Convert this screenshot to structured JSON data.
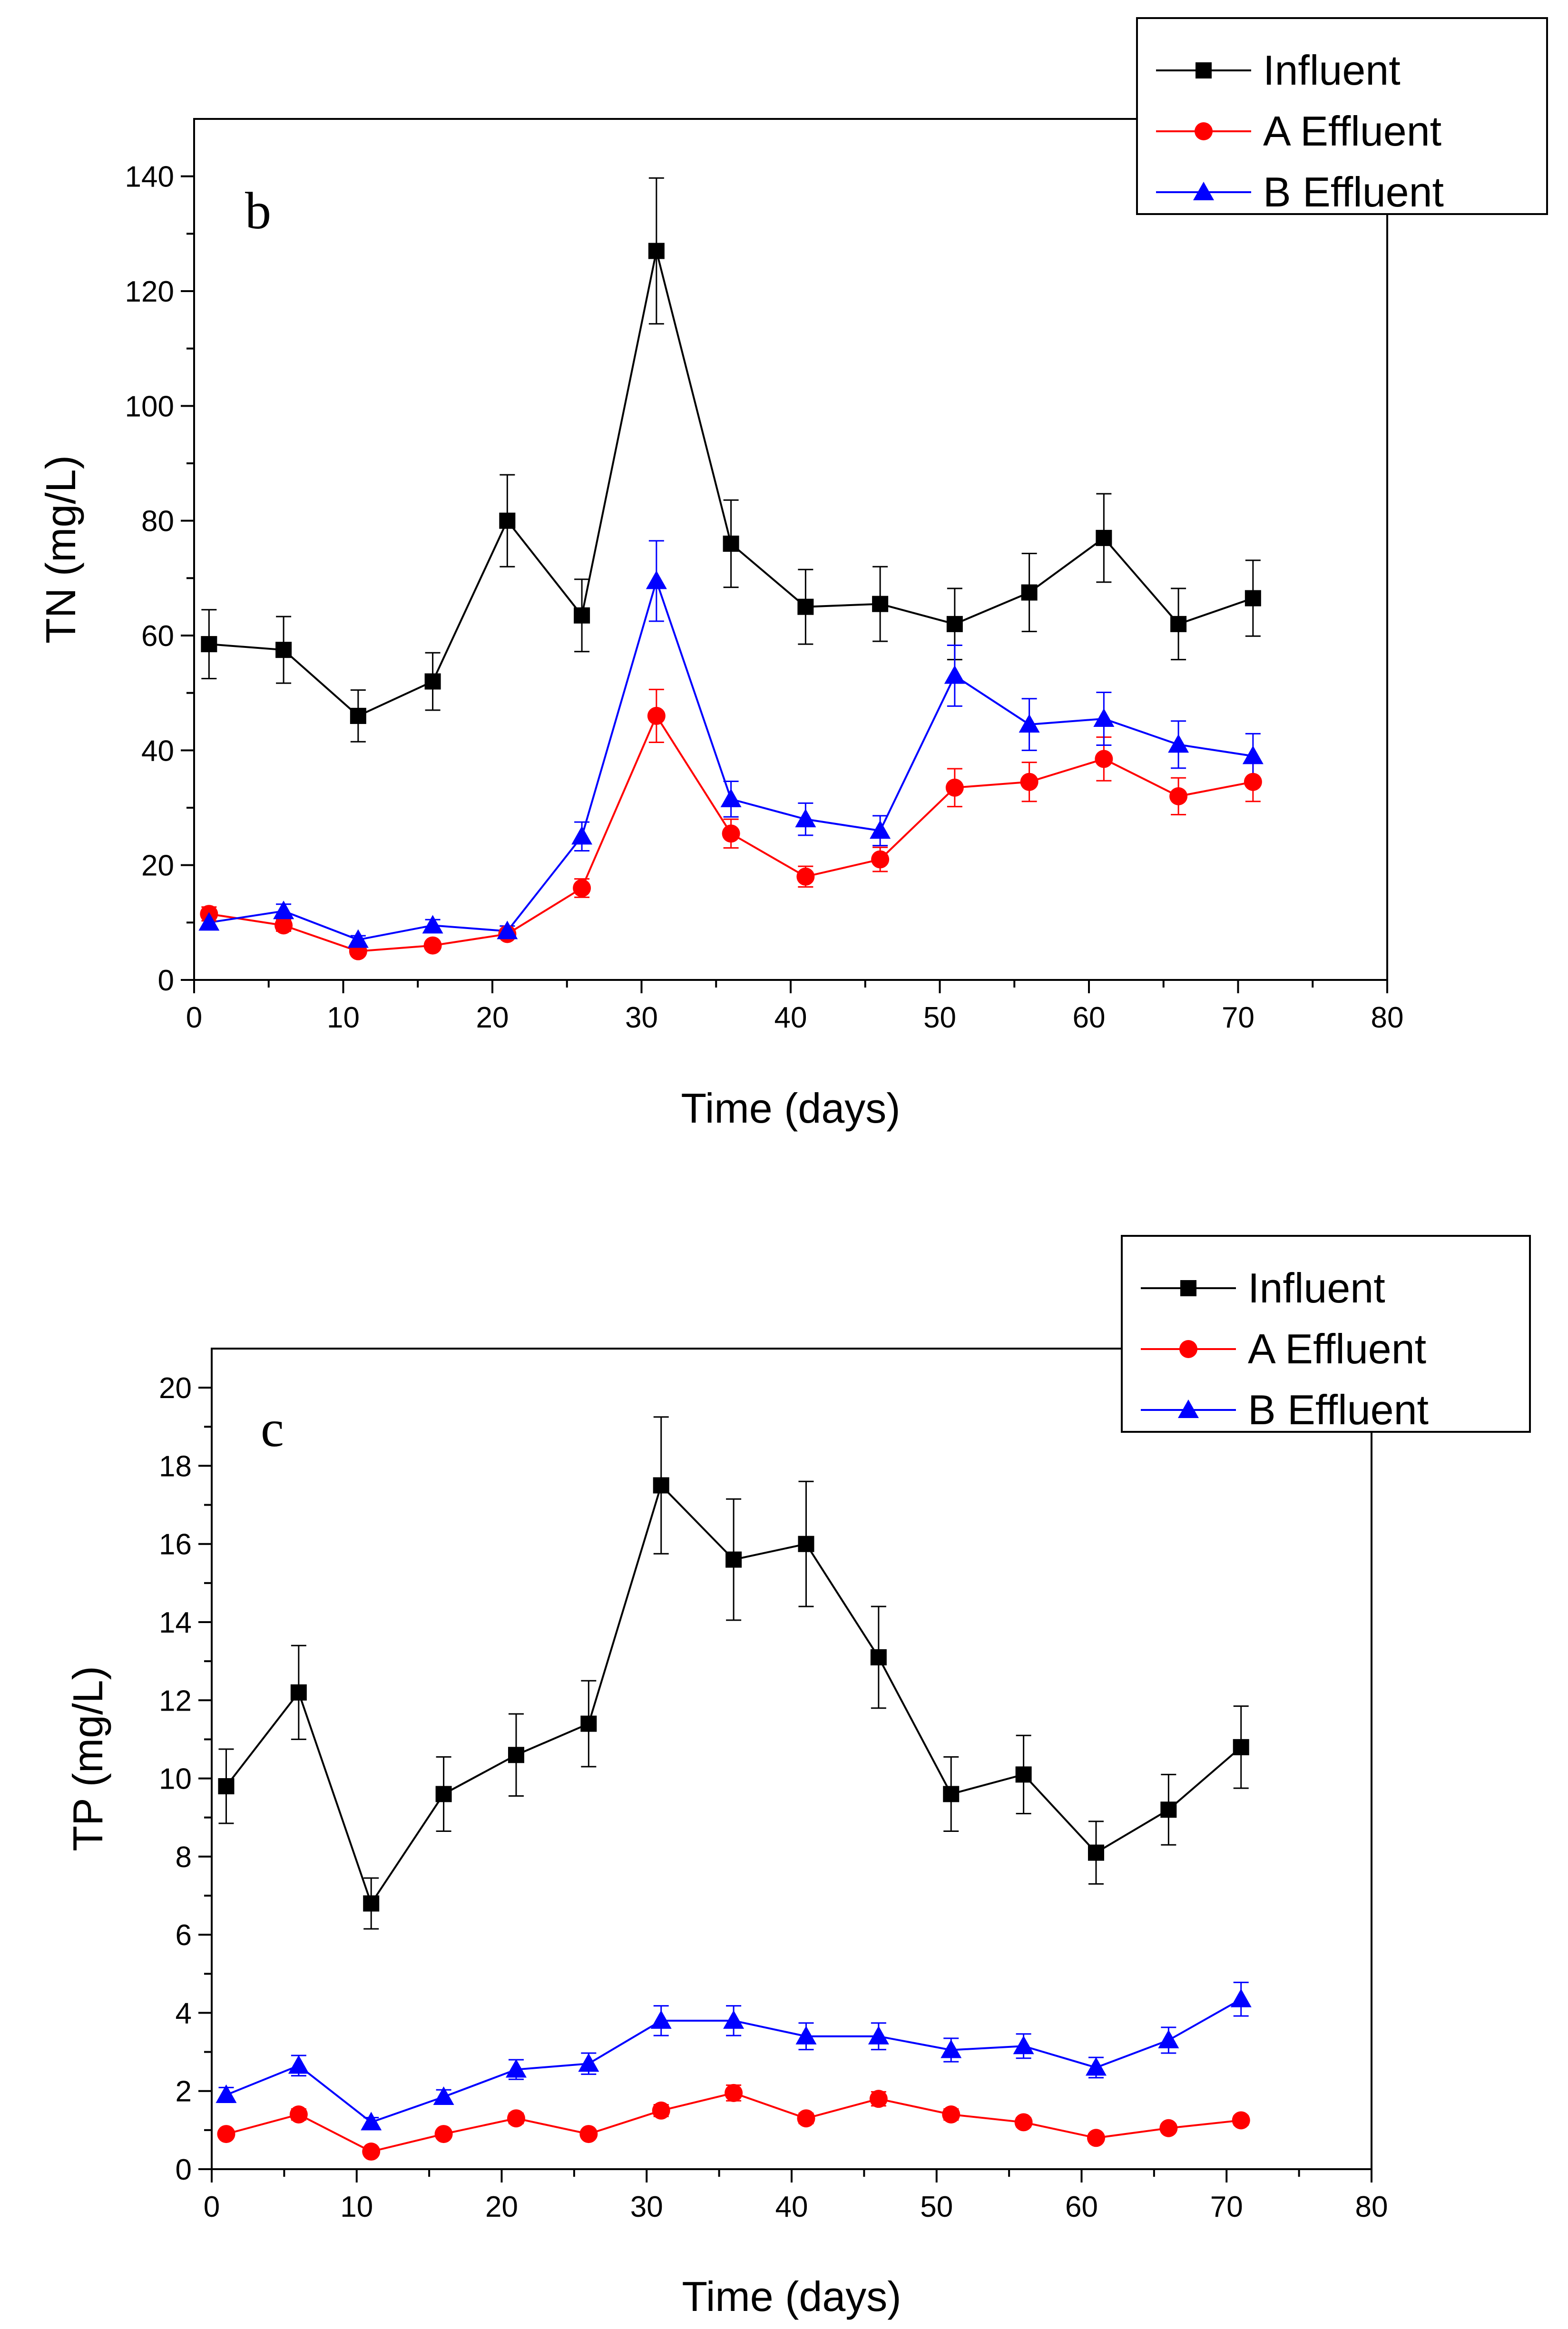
{
  "chart_data": [
    {
      "type": "line",
      "panel_label": "b",
      "xlabel": "Time (days)",
      "ylabel": "TN (mg/L)",
      "xlim": [
        0,
        80
      ],
      "ylim": [
        0,
        150
      ],
      "xticks": [
        0,
        10,
        20,
        30,
        40,
        50,
        60,
        70,
        80
      ],
      "yticks": [
        0,
        20,
        40,
        60,
        80,
        100,
        120,
        140
      ],
      "grid": false,
      "legend_position": "top-right",
      "x": [
        1,
        6,
        11,
        16,
        21,
        26,
        31,
        36,
        41,
        46,
        51,
        56,
        61,
        66,
        71
      ],
      "series": [
        {
          "name": "Influent",
          "color": "#000000",
          "marker": "square",
          "values": [
            58.5,
            57.5,
            46,
            52,
            80,
            63.5,
            127,
            76,
            65,
            65.5,
            62,
            67.5,
            77,
            62,
            66.5
          ],
          "errors": [
            6,
            5.8,
            4.5,
            5,
            8,
            6.3,
            12.7,
            7.6,
            6.5,
            6.5,
            6.2,
            6.8,
            7.7,
            6.2,
            6.6
          ]
        },
        {
          "name": "A Effluent",
          "color": "#ff0000",
          "marker": "circle",
          "values": [
            11.5,
            9.5,
            5,
            6,
            8,
            16,
            46,
            25.5,
            18,
            21,
            33.5,
            34.5,
            38.5,
            32,
            34.5
          ],
          "errors": [
            1.2,
            1,
            0.6,
            0.6,
            0.8,
            1.6,
            4.6,
            2.5,
            1.8,
            2.1,
            3.3,
            3.4,
            3.8,
            3.2,
            3.4
          ]
        },
        {
          "name": "B Effluent",
          "color": "#0000ff",
          "marker": "triangle",
          "values": [
            10,
            12,
            7,
            9.5,
            8.5,
            25,
            69.5,
            31.5,
            28,
            26,
            53,
            44.5,
            45.5,
            41,
            39
          ],
          "errors": [
            1,
            1.2,
            0.7,
            1,
            0.9,
            2.5,
            7,
            3.1,
            2.8,
            2.6,
            5.3,
            4.5,
            4.6,
            4.1,
            3.9
          ]
        }
      ]
    },
    {
      "type": "line",
      "panel_label": "c",
      "xlabel": "Time (days)",
      "ylabel": "TP (mg/L)",
      "xlim": [
        0,
        80
      ],
      "ylim": [
        0,
        21
      ],
      "xticks": [
        0,
        10,
        20,
        30,
        40,
        50,
        60,
        70,
        80
      ],
      "yticks": [
        0,
        2,
        4,
        6,
        8,
        10,
        12,
        14,
        16,
        18,
        20
      ],
      "grid": false,
      "legend_position": "top-right",
      "x": [
        1,
        6,
        11,
        16,
        21,
        26,
        31,
        36,
        41,
        46,
        51,
        56,
        61,
        66,
        71
      ],
      "series": [
        {
          "name": "Influent",
          "color": "#000000",
          "marker": "square",
          "values": [
            9.8,
            12.2,
            6.8,
            9.6,
            10.6,
            11.4,
            17.5,
            15.6,
            16,
            13.1,
            9.6,
            10.1,
            8.1,
            9.2,
            10.8
          ],
          "errors": [
            0.95,
            1.2,
            0.65,
            0.95,
            1.05,
            1.1,
            1.75,
            1.55,
            1.6,
            1.3,
            0.95,
            1,
            0.8,
            0.9,
            1.05
          ]
        },
        {
          "name": "A Effluent",
          "color": "#ff0000",
          "marker": "circle",
          "values": [
            0.9,
            1.4,
            0.45,
            0.9,
            1.3,
            0.9,
            1.5,
            1.95,
            1.3,
            1.8,
            1.4,
            1.2,
            0.8,
            1.05,
            1.25
          ],
          "errors": [
            0.09,
            0.14,
            0.05,
            0.09,
            0.13,
            0.09,
            0.15,
            0.2,
            0.13,
            0.18,
            0.14,
            0.12,
            0.08,
            0.1,
            0.12
          ]
        },
        {
          "name": "B Effluent",
          "color": "#0000ff",
          "marker": "triangle",
          "values": [
            1.9,
            2.65,
            1.2,
            1.85,
            2.55,
            2.7,
            3.8,
            3.8,
            3.4,
            3.4,
            3.05,
            3.15,
            2.6,
            3.3,
            4.35
          ],
          "errors": [
            0.19,
            0.26,
            0.12,
            0.18,
            0.25,
            0.27,
            0.38,
            0.38,
            0.34,
            0.34,
            0.3,
            0.31,
            0.26,
            0.33,
            0.43
          ]
        }
      ]
    }
  ]
}
